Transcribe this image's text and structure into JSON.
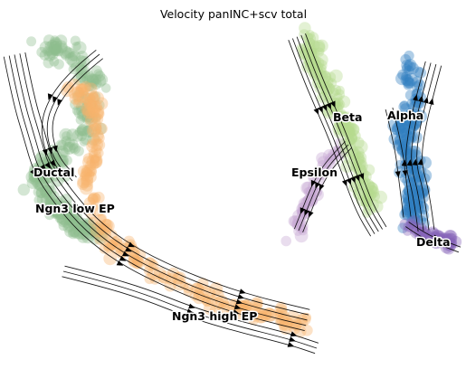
{
  "chart_data": {
    "type": "scatter",
    "title": "Velocity panINC+scv total",
    "xlabel": "",
    "ylabel": "",
    "axes": "off",
    "grid": false,
    "legend": "on data",
    "clusters": [
      {
        "name": "Ductal",
        "color": "#8fbc8f"
      },
      {
        "name": "Ngn3 low EP",
        "color": "#8fbc8f"
      },
      {
        "name": "Ngn3 high EP",
        "color": "#f6b26b"
      },
      {
        "name": "Beta",
        "color": "#b5d98f"
      },
      {
        "name": "Alpha",
        "color": "#2f7fbf"
      },
      {
        "name": "Epsilon",
        "color": "#c5a5d2"
      },
      {
        "name": "Delta",
        "color": "#8764b8"
      }
    ]
  }
}
